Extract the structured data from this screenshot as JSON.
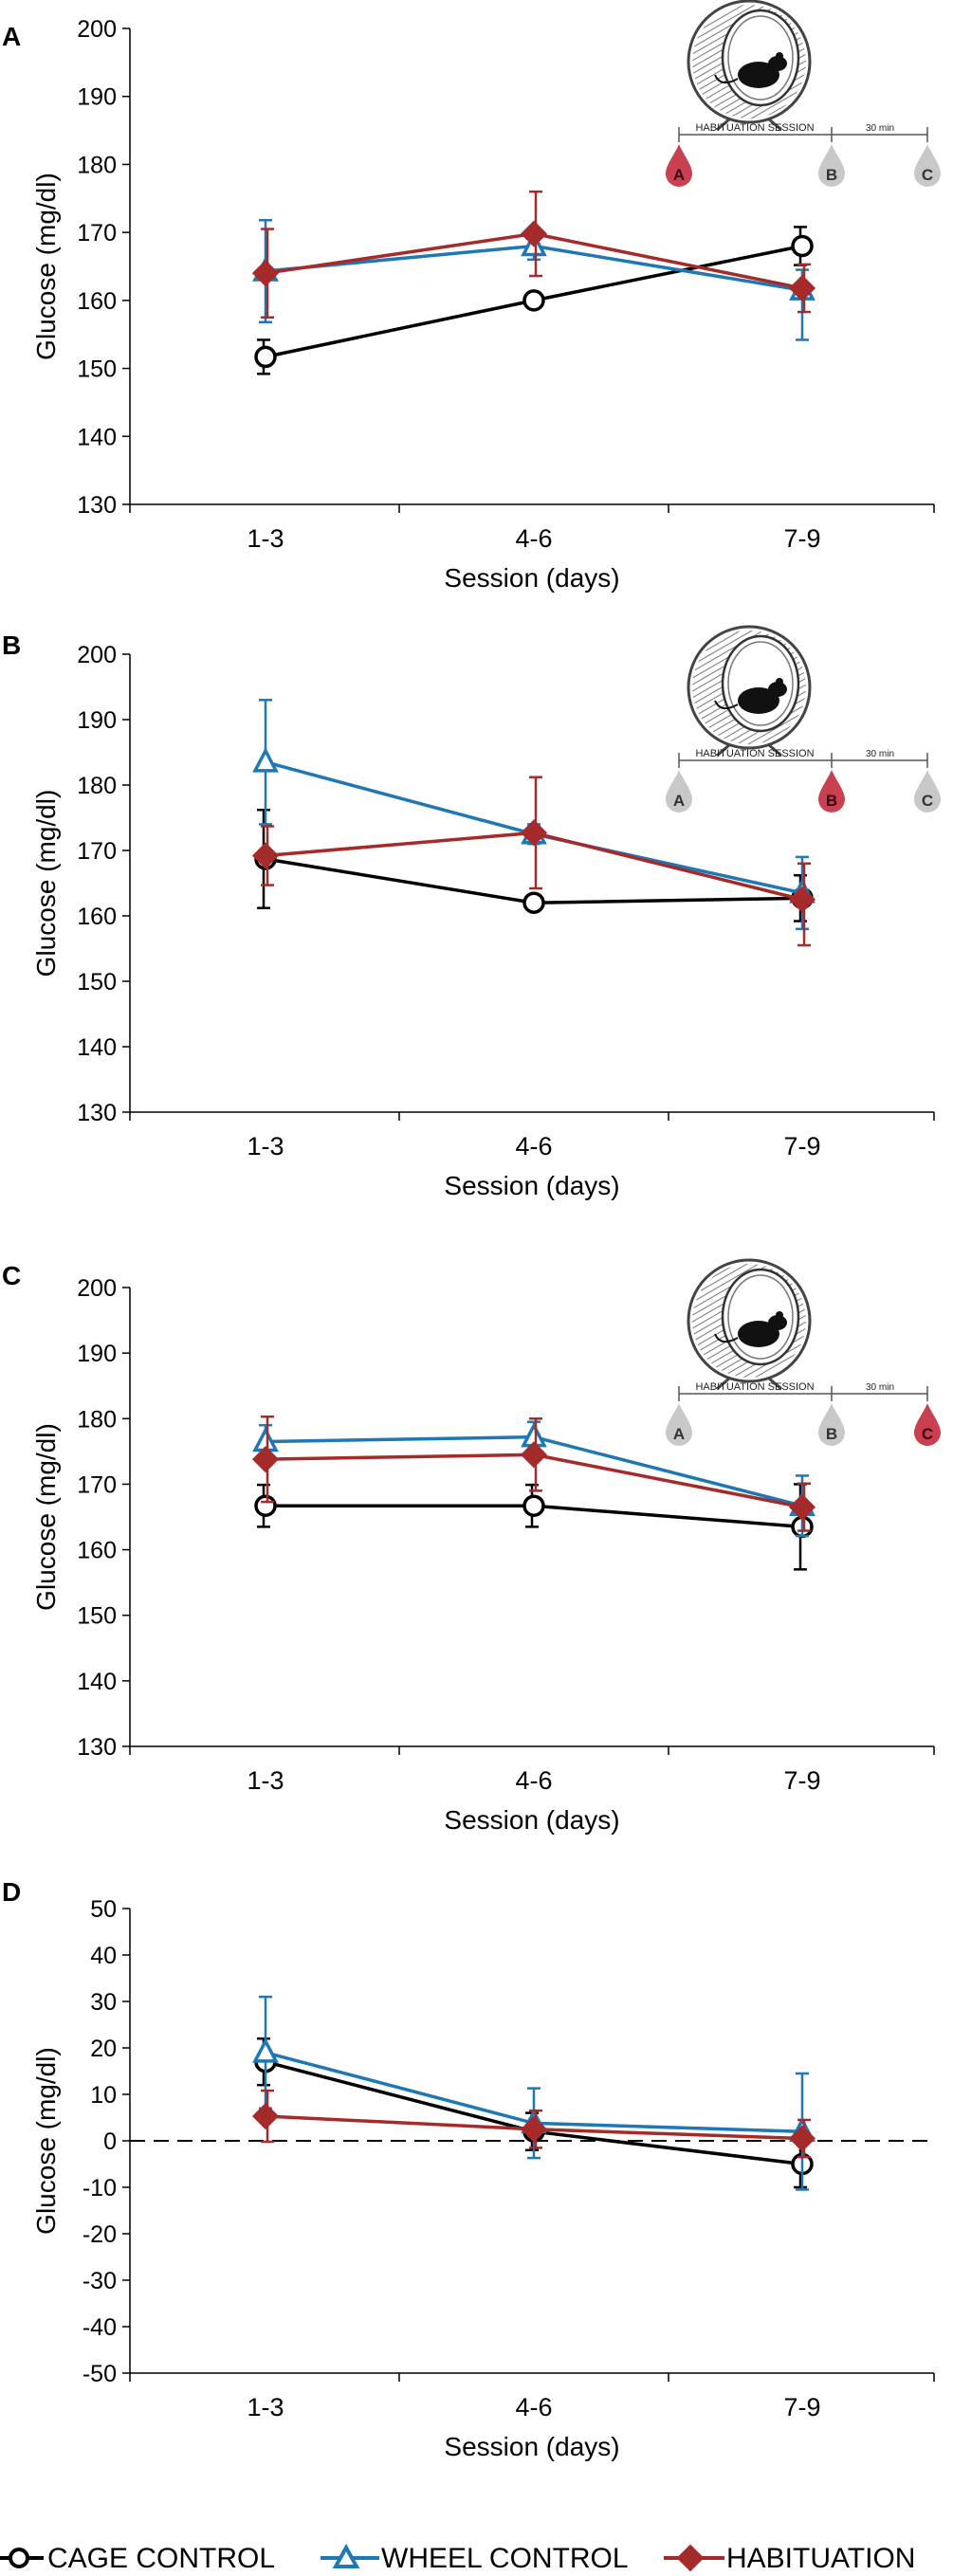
{
  "colors": {
    "cage": "#000000",
    "wheel": "#1f77b4",
    "habituation": "#a52a2a",
    "drop_active": "#c94050",
    "drop_inactive": "#c8c8c8",
    "axis": "#000000"
  },
  "legend": {
    "cage_label": "CAGE CONTROL",
    "wheel_label": "WHEEL CONTROL",
    "habituation_label": "HABITUATION"
  },
  "chart_data": [
    {
      "type": "line",
      "panel": "A",
      "xlabel": "Session (days)",
      "ylabel": "Glucose (mg/dl)",
      "categories": [
        "1-3",
        "4-6",
        "7-9"
      ],
      "ylim": [
        130,
        200
      ],
      "yticks": [
        130,
        140,
        150,
        160,
        170,
        180,
        190,
        200
      ],
      "zero_line": false,
      "inset": {
        "session_label": "HABITUATION SESSION",
        "interval_label": "30 min",
        "markers": [
          "A",
          "B",
          "C"
        ],
        "active": "A"
      },
      "series": [
        {
          "name": "CAGE CONTROL",
          "key": "cage",
          "marker": "circle",
          "values": [
            151.7,
            160,
            168
          ],
          "err_up": [
            2.5,
            0,
            2.8
          ],
          "err_down": [
            2.5,
            0,
            2.8
          ]
        },
        {
          "name": "WHEEL CONTROL",
          "key": "wheel",
          "marker": "triangle",
          "values": [
            164.3,
            168,
            161.5
          ],
          "err_up": [
            7.5,
            2,
            3
          ],
          "err_down": [
            7.5,
            2,
            7.3
          ]
        },
        {
          "name": "HABITUATION",
          "key": "habituation",
          "marker": "diamond",
          "values": [
            164,
            169.8,
            161.8
          ],
          "err_up": [
            6.5,
            6.2,
            3.5
          ],
          "err_down": [
            6.5,
            6.2,
            3.5
          ]
        }
      ]
    },
    {
      "type": "line",
      "panel": "B",
      "xlabel": "Session (days)",
      "ylabel": "Glucose (mg/dl)",
      "categories": [
        "1-3",
        "4-6",
        "7-9"
      ],
      "ylim": [
        130,
        200
      ],
      "yticks": [
        130,
        140,
        150,
        160,
        170,
        180,
        190,
        200
      ],
      "zero_line": false,
      "inset": {
        "session_label": "HABITUATION SESSION",
        "interval_label": "30 min",
        "markers": [
          "A",
          "B",
          "C"
        ],
        "active": "B"
      },
      "series": [
        {
          "name": "CAGE CONTROL",
          "key": "cage",
          "marker": "circle",
          "values": [
            168.7,
            162,
            162.7
          ],
          "err_up": [
            7.5,
            0,
            3.5
          ],
          "err_down": [
            7.5,
            0,
            3.5
          ]
        },
        {
          "name": "WHEEL CONTROL",
          "key": "wheel",
          "marker": "triangle",
          "values": [
            183.5,
            172.5,
            163.5
          ],
          "err_up": [
            9.5,
            1.5,
            5.5
          ],
          "err_down": [
            9.5,
            1.5,
            5.5
          ]
        },
        {
          "name": "HABITUATION",
          "key": "habituation",
          "marker": "diamond",
          "values": [
            169.2,
            172.7,
            162.5
          ],
          "err_up": [
            4.5,
            8.5,
            5.5
          ],
          "err_down": [
            4.5,
            8.5,
            7
          ]
        }
      ]
    },
    {
      "type": "line",
      "panel": "C",
      "xlabel": "Session (days)",
      "ylabel": "Glucose (mg/dl)",
      "categories": [
        "1-3",
        "4-6",
        "7-9"
      ],
      "ylim": [
        130,
        200
      ],
      "yticks": [
        130,
        140,
        150,
        160,
        170,
        180,
        190,
        200
      ],
      "zero_line": false,
      "inset": {
        "session_label": "HABITUATION SESSION",
        "interval_label": "30 min",
        "markers": [
          "A",
          "B",
          "C"
        ],
        "active": "C"
      },
      "series": [
        {
          "name": "CAGE CONTROL",
          "key": "cage",
          "marker": "circle",
          "values": [
            166.7,
            166.7,
            163.5
          ],
          "err_up": [
            3.2,
            3.2,
            6.5
          ],
          "err_down": [
            3.2,
            3.2,
            6.5
          ]
        },
        {
          "name": "WHEEL CONTROL",
          "key": "wheel",
          "marker": "triangle",
          "values": [
            176.5,
            177.2,
            166.7
          ],
          "err_up": [
            2.5,
            2.3,
            4.6
          ],
          "err_down": [
            2.5,
            2.3,
            4.6
          ]
        },
        {
          "name": "HABITUATION",
          "key": "habituation",
          "marker": "diamond",
          "values": [
            173.8,
            174.5,
            166.5
          ],
          "err_up": [
            6.5,
            5.5,
            3.6
          ],
          "err_down": [
            6.5,
            5.5,
            3.6
          ]
        }
      ]
    },
    {
      "type": "line",
      "panel": "D",
      "xlabel": "Session (days)",
      "ylabel": "Glucose (mg/dl)",
      "categories": [
        "1-3",
        "4-6",
        "7-9"
      ],
      "ylim": [
        -50,
        50
      ],
      "yticks": [
        -50,
        -40,
        -30,
        -20,
        -10,
        0,
        10,
        20,
        30,
        40,
        50
      ],
      "zero_line": true,
      "inset": null,
      "series": [
        {
          "name": "CAGE CONTROL",
          "key": "cage",
          "marker": "circle",
          "values": [
            17,
            2,
            -5
          ],
          "err_up": [
            5,
            4,
            5
          ],
          "err_down": [
            5,
            4,
            5
          ]
        },
        {
          "name": "WHEEL CONTROL",
          "key": "wheel",
          "marker": "triangle",
          "values": [
            19,
            3.8,
            2
          ],
          "err_up": [
            12,
            7.5,
            12.5
          ],
          "err_down": [
            12,
            7.5,
            12.5
          ]
        },
        {
          "name": "HABITUATION",
          "key": "habituation",
          "marker": "diamond",
          "values": [
            5.3,
            2.5,
            0.5
          ],
          "err_up": [
            5.5,
            4,
            4
          ],
          "err_down": [
            5.5,
            4,
            4
          ]
        }
      ]
    }
  ]
}
